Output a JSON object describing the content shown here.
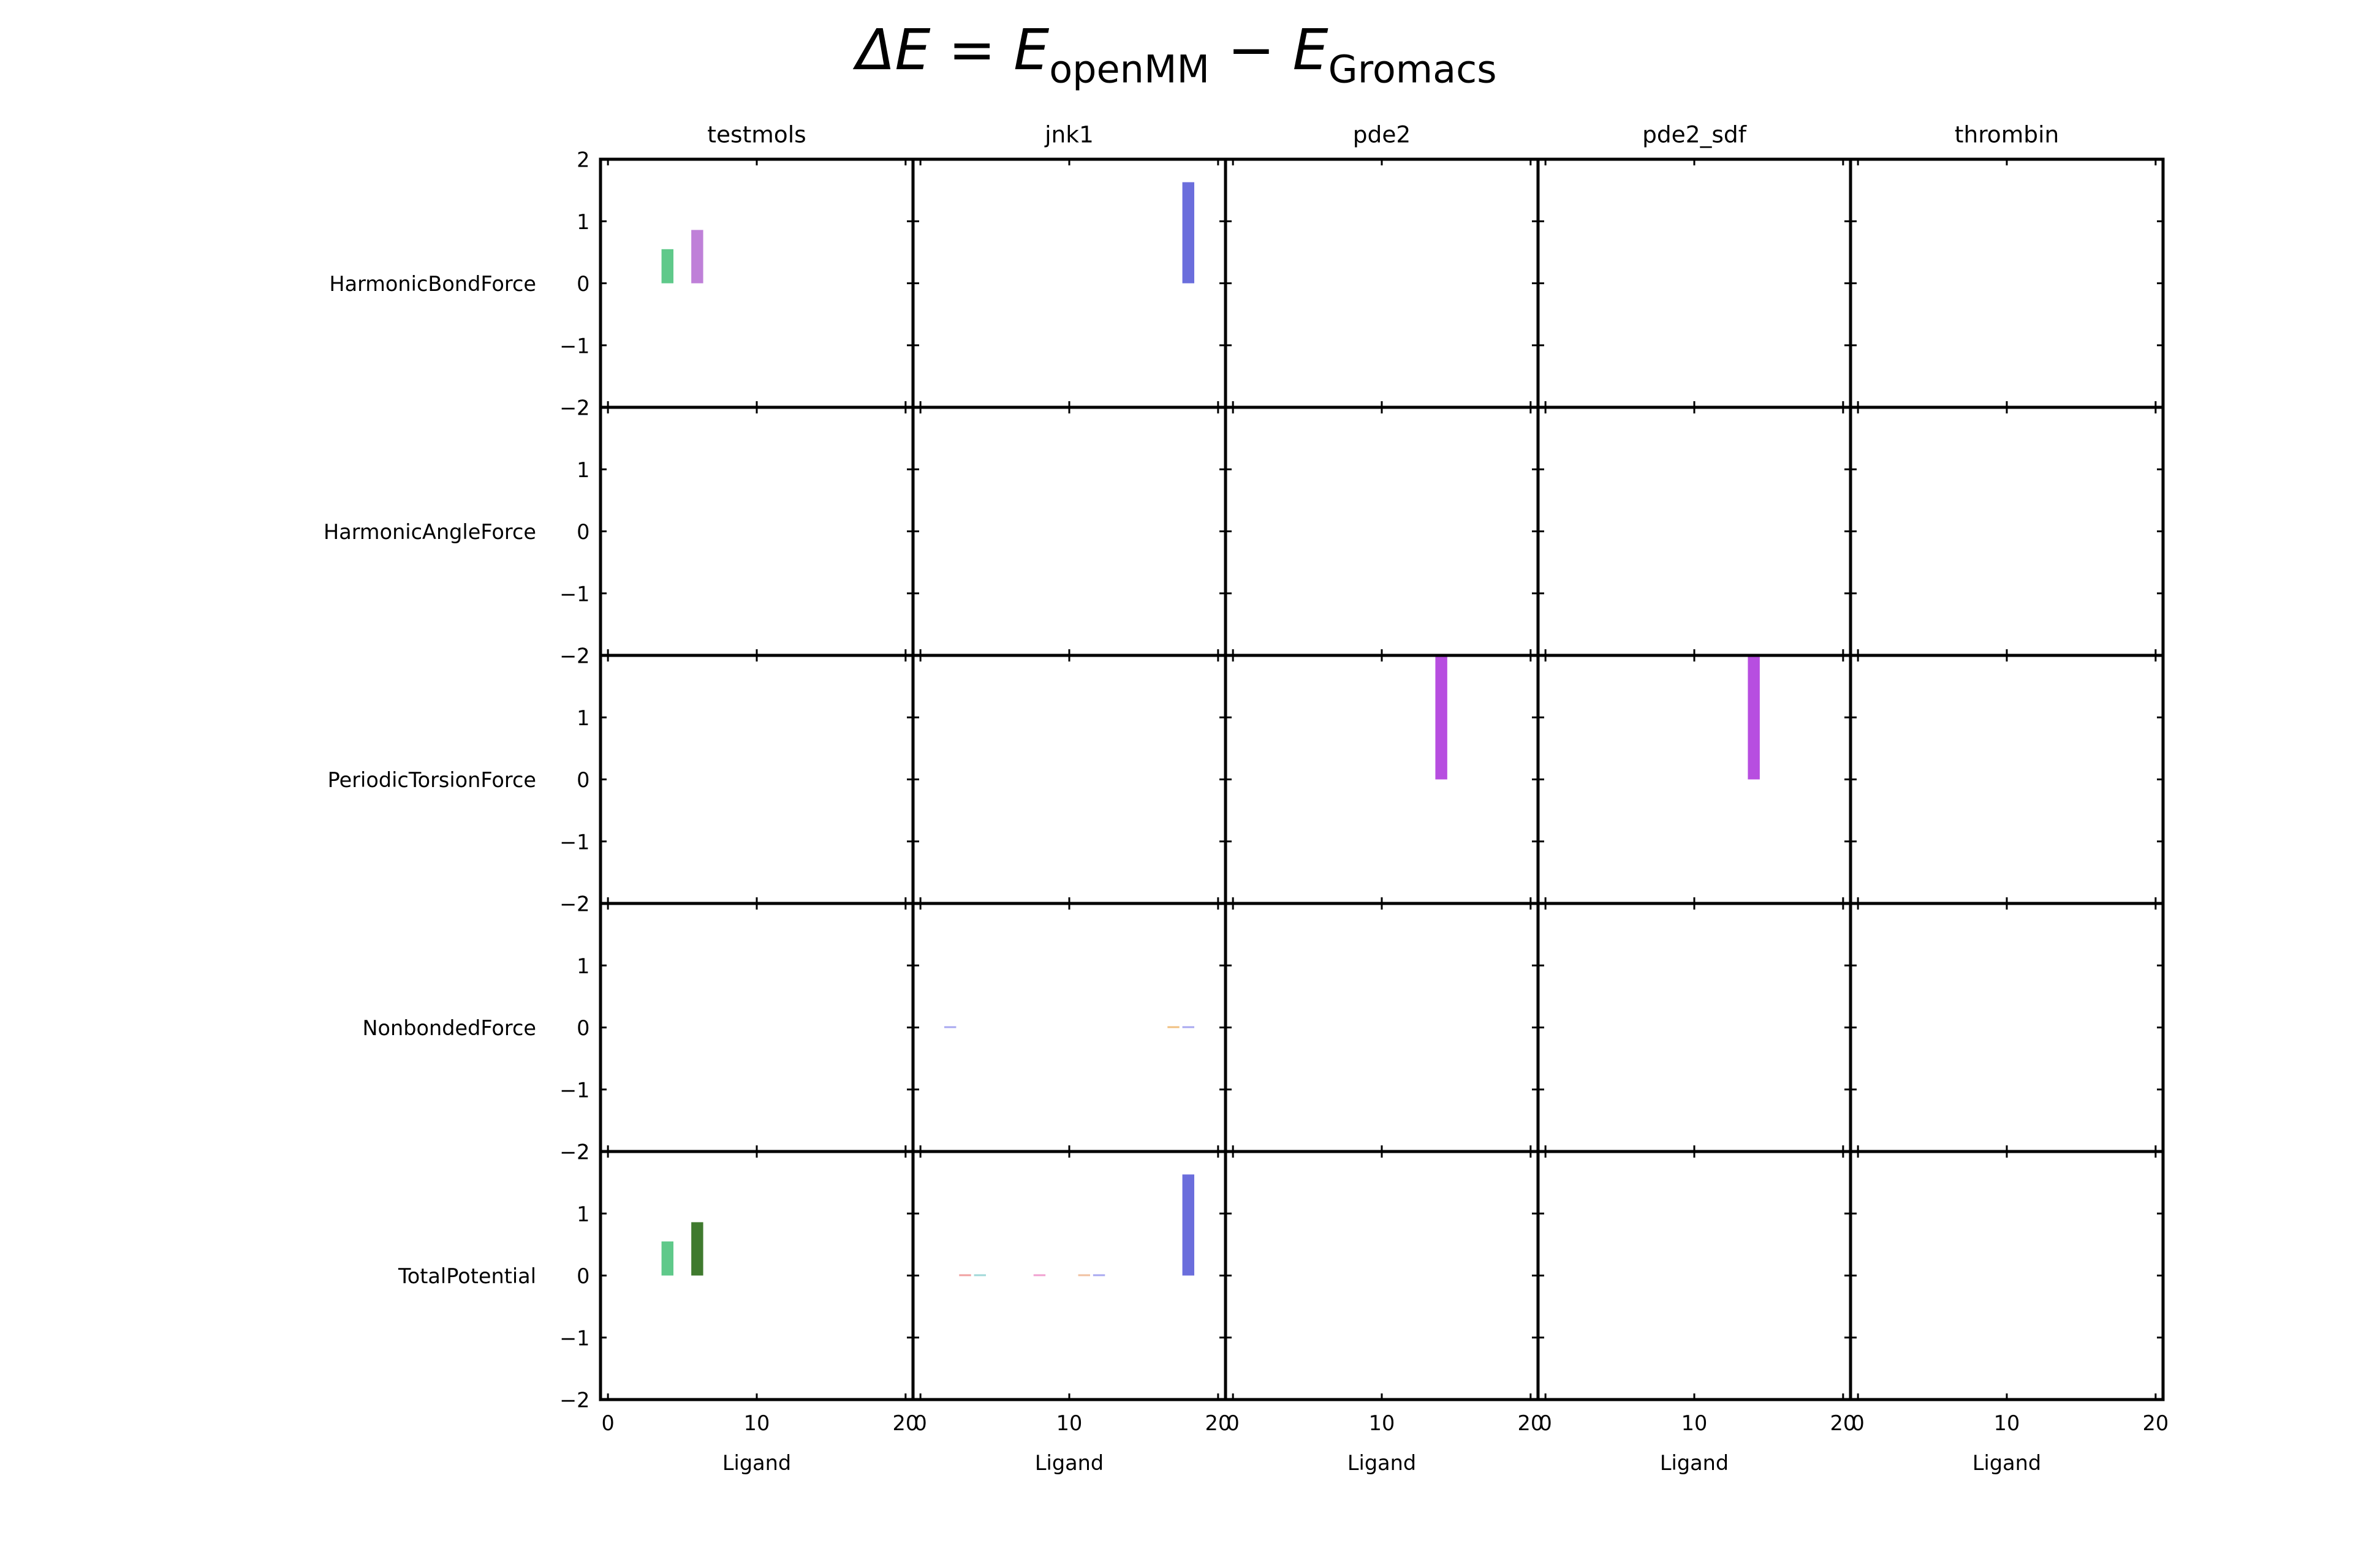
{
  "chart_data": {
    "type": "bar",
    "title": {
      "lhs": "ΔE",
      "eq": " = ",
      "e1": "E",
      "e1_sub": "openMM",
      "minus": " − ",
      "e2": "E",
      "e2_sub": "Gromacs"
    },
    "columns": [
      "testmols",
      "jnk1",
      "pde2",
      "pde2_sdf",
      "thrombin"
    ],
    "rows": [
      "HarmonicBondForce",
      "HarmonicAngleForce",
      "PeriodicTorsionForce",
      "NonbondedForce",
      "TotalPotential"
    ],
    "xlabel": "Ligand",
    "xlim": [
      -0.5,
      20.5
    ],
    "ylim": [
      -2,
      2
    ],
    "xticks": [
      0,
      10,
      20
    ],
    "yticks": [
      -2,
      -1,
      0,
      1,
      2
    ],
    "bar_width": 0.8,
    "bars": [
      {
        "row": "HarmonicBondForce",
        "column": "testmols",
        "x": 4,
        "value": 0.55,
        "color": "#5fc98a"
      },
      {
        "row": "HarmonicBondForce",
        "column": "testmols",
        "x": 6,
        "value": 0.86,
        "color": "#bf80d8"
      },
      {
        "row": "HarmonicBondForce",
        "column": "jnk1",
        "x": 18,
        "value": 1.63,
        "color": "#6b6edc"
      },
      {
        "row": "PeriodicTorsionForce",
        "column": "pde2",
        "x": 14,
        "value": 2.0,
        "color": "#b74ee0"
      },
      {
        "row": "PeriodicTorsionForce",
        "column": "pde2_sdf",
        "x": 14,
        "value": 2.0,
        "color": "#b74ee0"
      },
      {
        "row": "NonbondedForce",
        "column": "jnk1",
        "x": 2,
        "value": 0.02,
        "color": "#a8a8f0"
      },
      {
        "row": "NonbondedForce",
        "column": "jnk1",
        "x": 17,
        "value": 0.02,
        "color": "#f0c080"
      },
      {
        "row": "NonbondedForce",
        "column": "jnk1",
        "x": 18,
        "value": 0.02,
        "color": "#a8a8f0"
      },
      {
        "row": "TotalPotential",
        "column": "testmols",
        "x": 4,
        "value": 0.55,
        "color": "#5fc98a"
      },
      {
        "row": "TotalPotential",
        "column": "testmols",
        "x": 6,
        "value": 0.86,
        "color": "#3f7a2e"
      },
      {
        "row": "TotalPotential",
        "column": "jnk1",
        "x": 3,
        "value": 0.02,
        "color": "#f0a0a0"
      },
      {
        "row": "TotalPotential",
        "column": "jnk1",
        "x": 4,
        "value": 0.02,
        "color": "#a0d8d8"
      },
      {
        "row": "TotalPotential",
        "column": "jnk1",
        "x": 8,
        "value": 0.02,
        "color": "#f0a0d0"
      },
      {
        "row": "TotalPotential",
        "column": "jnk1",
        "x": 11,
        "value": 0.02,
        "color": "#f0c0a0"
      },
      {
        "row": "TotalPotential",
        "column": "jnk1",
        "x": 12,
        "value": 0.02,
        "color": "#a8a8f0"
      },
      {
        "row": "TotalPotential",
        "column": "jnk1",
        "x": 18,
        "value": 1.63,
        "color": "#6b6edc"
      }
    ]
  }
}
